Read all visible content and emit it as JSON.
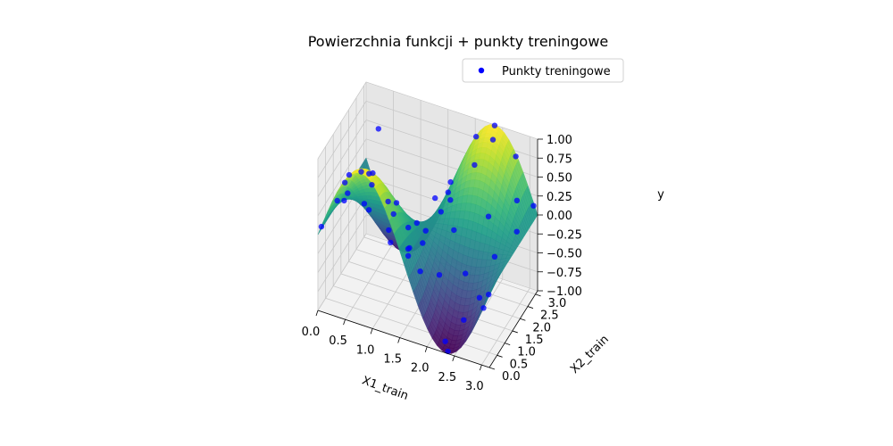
{
  "chart_data": {
    "type": "scatter",
    "title": "Powierzchnia funkcji + punkty treningowe",
    "xlabel": "X1_train",
    "ylabel": "X2_train",
    "zlabel": "y",
    "xlim": [
      0,
      3.1416
    ],
    "ylim": [
      0,
      3.1416
    ],
    "zlim": [
      -1,
      1
    ],
    "xticks": [
      "0.0",
      "0.5",
      "1.0",
      "1.5",
      "2.0",
      "2.5",
      "3.0"
    ],
    "yticks": [
      "0.0",
      "0.5",
      "1.0",
      "1.5",
      "2.0",
      "2.5",
      "3.0"
    ],
    "zticks": [
      "−1.00",
      "−0.75",
      "−0.50",
      "−0.25",
      "0.00",
      "0.25",
      "0.50",
      "0.75",
      "1.00"
    ],
    "grid": true,
    "legend_position": "top-right",
    "surface_colormap": "viridis",
    "surface_function": "sin(2*x1) * cos(x2)",
    "series": [
      {
        "name": "Punkty treningowe",
        "color": "#0000ff",
        "points": [
          [
            0.52,
            0.19,
            0.85
          ],
          [
            2.26,
            0.26,
            -0.95
          ],
          [
            1.21,
            0.27,
            0.64
          ],
          [
            0.39,
            0.37,
            0.66
          ],
          [
            2.92,
            0.41,
            -0.4
          ],
          [
            1.72,
            0.55,
            -0.25
          ],
          [
            0.18,
            0.62,
            0.29
          ],
          [
            0.83,
            0.62,
            0.81
          ],
          [
            2.48,
            0.68,
            -0.75
          ],
          [
            1.44,
            0.77,
            0.19
          ],
          [
            2.71,
            0.89,
            -0.47
          ],
          [
            0.28,
            0.94,
            0.31
          ],
          [
            1.95,
            0.98,
            -0.38
          ],
          [
            0.69,
            1.06,
            0.48
          ],
          [
            1.12,
            1.14,
            0.32
          ],
          [
            2.36,
            1.22,
            -0.34
          ],
          [
            0.11,
            1.32,
            0.05
          ],
          [
            1.59,
            1.37,
            -0.01
          ],
          [
            2.83,
            1.45,
            -0.08
          ],
          [
            0.95,
            1.55,
            0.0
          ],
          [
            2.04,
            1.61,
            0.03
          ],
          [
            0.45,
            1.72,
            -0.12
          ],
          [
            1.31,
            1.79,
            -0.11
          ],
          [
            2.6,
            1.87,
            0.26
          ],
          [
            0.74,
            1.98,
            -0.4
          ],
          [
            1.85,
            2.05,
            0.24
          ],
          [
            3.05,
            2.11,
            0.09
          ],
          [
            0.22,
            2.24,
            -0.26
          ],
          [
            1.5,
            2.3,
            0.1
          ],
          [
            2.2,
            2.38,
            0.68
          ],
          [
            0.98,
            2.48,
            -0.74
          ],
          [
            2.93,
            2.55,
            0.33
          ],
          [
            0.59,
            2.63,
            -0.81
          ],
          [
            1.67,
            2.71,
            0.22
          ],
          [
            2.42,
            2.8,
            0.93
          ],
          [
            0.3,
            2.88,
            0.54
          ],
          [
            1.09,
            2.95,
            -0.8
          ],
          [
            2.05,
            3.02,
            0.81
          ],
          [
            2.76,
            3.08,
            0.7
          ],
          [
            1.38,
            3.11,
            -0.37
          ],
          [
            0.05,
            0.05,
            0.1
          ],
          [
            3.1,
            0.1,
            -0.08
          ],
          [
            0.08,
            3.05,
            -0.16
          ],
          [
            3.08,
            3.1,
            0.12
          ],
          [
            0.78,
            0.05,
            1.0
          ],
          [
            2.36,
            0.08,
            -1.0
          ],
          [
            0.78,
            3.1,
            -1.0
          ],
          [
            2.36,
            3.12,
            1.0
          ],
          [
            1.57,
            0.3,
            0.0
          ],
          [
            1.57,
            2.9,
            0.0
          ]
        ]
      }
    ]
  }
}
